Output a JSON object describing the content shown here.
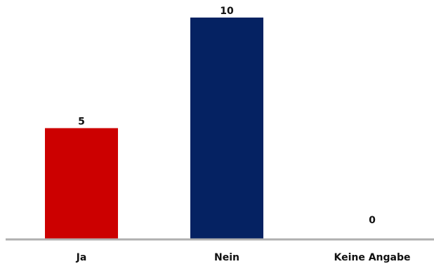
{
  "chart_data": {
    "type": "bar",
    "categories": [
      "Ja",
      "Nein",
      "Keine Angabe"
    ],
    "values": [
      5,
      10,
      0
    ],
    "colors": [
      "#cc0000",
      "#052262",
      "#052262"
    ],
    "axis_color": "#b0b0b0",
    "ylim": [
      0,
      10
    ],
    "grid": false,
    "legend": "none"
  }
}
